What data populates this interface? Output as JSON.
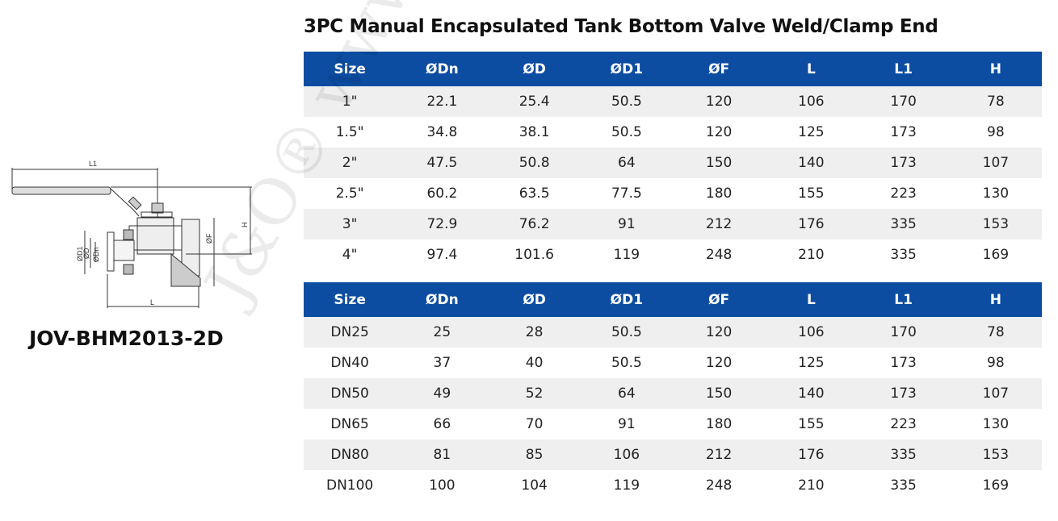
{
  "title": "3PC Manual Encapsulated Tank Bottom Valve Weld/Clamp End",
  "model": "JOV-BHM2013-2D",
  "watermark": "J&O® www.",
  "colors": {
    "header": "#0c4da2",
    "stripe": "#efefef"
  },
  "drawing_labels": {
    "l1": "L1",
    "l": "L",
    "h": "H",
    "f": "ØF",
    "d1": "ØD1",
    "d": "ØD",
    "dn": "ØDn"
  },
  "headers": [
    "Size",
    "ØDn",
    "ØD",
    "ØD1",
    "ØF",
    "L",
    "L1",
    "H"
  ],
  "table_inch": [
    [
      "1\"",
      "22.1",
      "25.4",
      "50.5",
      "120",
      "106",
      "170",
      "78"
    ],
    [
      "1.5\"",
      "34.8",
      "38.1",
      "50.5",
      "120",
      "125",
      "173",
      "98"
    ],
    [
      "2\"",
      "47.5",
      "50.8",
      "64",
      "150",
      "140",
      "173",
      "107"
    ],
    [
      "2.5\"",
      "60.2",
      "63.5",
      "77.5",
      "180",
      "155",
      "223",
      "130"
    ],
    [
      "3\"",
      "72.9",
      "76.2",
      "91",
      "212",
      "176",
      "335",
      "153"
    ],
    [
      "4\"",
      "97.4",
      "101.6",
      "119",
      "248",
      "210",
      "335",
      "169"
    ]
  ],
  "table_dn": [
    [
      "DN25",
      "25",
      "28",
      "50.5",
      "120",
      "106",
      "170",
      "78"
    ],
    [
      "DN40",
      "37",
      "40",
      "50.5",
      "120",
      "125",
      "173",
      "98"
    ],
    [
      "DN50",
      "49",
      "52",
      "64",
      "150",
      "140",
      "173",
      "107"
    ],
    [
      "DN65",
      "66",
      "70",
      "91",
      "180",
      "155",
      "223",
      "130"
    ],
    [
      "DN80",
      "81",
      "85",
      "106",
      "212",
      "176",
      "335",
      "153"
    ],
    [
      "DN100",
      "100",
      "104",
      "119",
      "248",
      "210",
      "335",
      "169"
    ]
  ]
}
